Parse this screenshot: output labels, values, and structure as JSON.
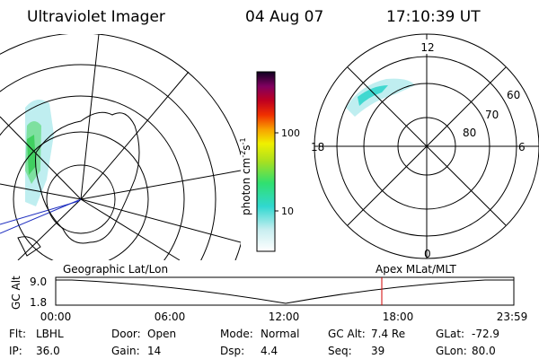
{
  "header": {
    "instrument": "Ultraviolet Imager",
    "date": "04 Aug 07",
    "time": "17:10:39 UT"
  },
  "colorbar": {
    "unit": [
      "photon cm",
      "-2",
      "s",
      "-1"
    ],
    "ticks": [
      "100",
      "10"
    ]
  },
  "polar_plot": {
    "mlt_labels": [
      "12",
      "18",
      "6",
      "0"
    ],
    "mlat_labels": [
      "60",
      "70",
      "80"
    ]
  },
  "altitude_plot": {
    "axis_label": "GC Alt",
    "y_labels": [
      "9.0",
      "1.8"
    ],
    "left_caption": "Geographic Lat/Lon",
    "right_caption": "Apex MLat/MLT",
    "time_labels": [
      "00:00",
      "06:00",
      "12:00",
      "18:00",
      "23:59"
    ]
  },
  "info": {
    "rows": [
      [
        [
          "Flt:",
          "LBHL"
        ],
        [
          "Door:",
          "Open"
        ],
        [
          "Mode:",
          "Normal"
        ],
        [
          "GC Alt:",
          "7.4 Re"
        ],
        [
          "GLat:",
          "-72.9"
        ]
      ],
      [
        [
          "IP:",
          "36.0"
        ],
        [
          "Gain:",
          "14"
        ],
        [
          "Dsp:",
          "4.4"
        ],
        [
          "Seq:",
          "39"
        ],
        [
          "GLon:",
          "80.0"
        ]
      ]
    ]
  }
}
